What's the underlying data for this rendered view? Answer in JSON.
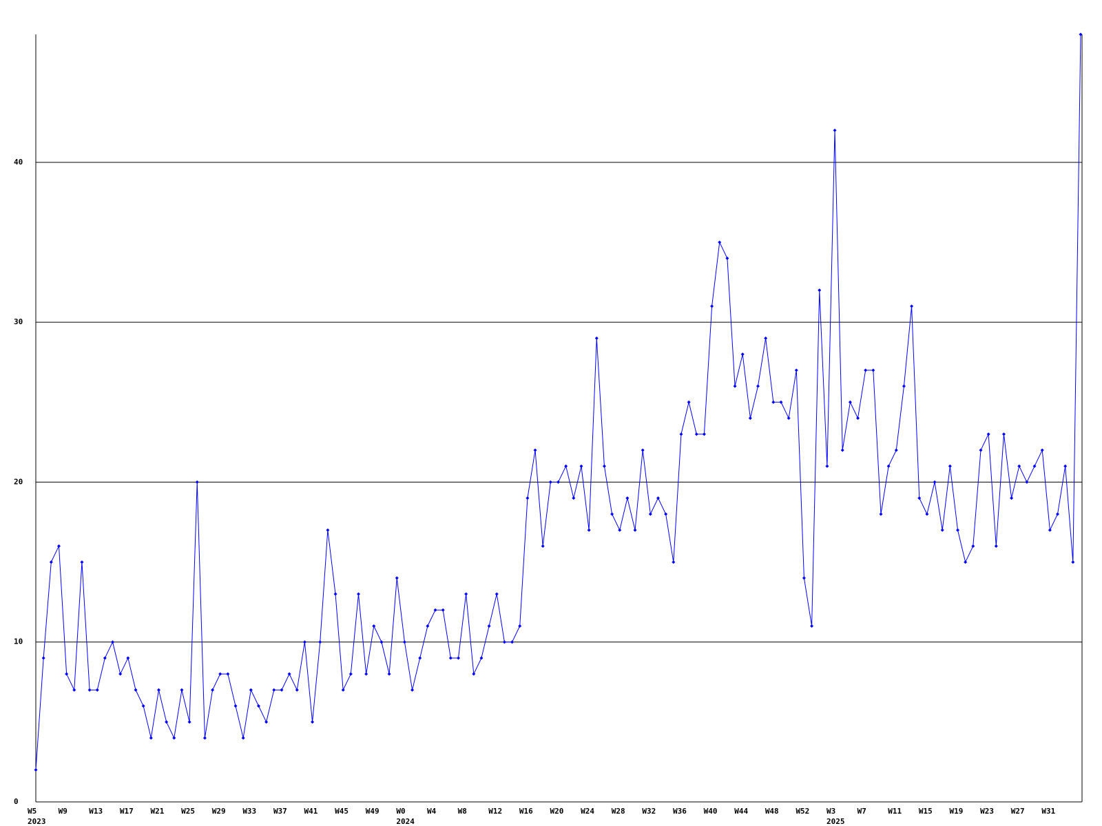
{
  "chart_data": {
    "type": "line",
    "categories": [
      "W5",
      null,
      null,
      null,
      "W9",
      null,
      null,
      null,
      "W13",
      null,
      null,
      null,
      "W17",
      null,
      null,
      null,
      "W21",
      null,
      null,
      null,
      "W25",
      null,
      null,
      null,
      "W29",
      null,
      null,
      null,
      "W33",
      null,
      null,
      null,
      "W37",
      null,
      null,
      null,
      "W41",
      null,
      null,
      null,
      "W45",
      null,
      null,
      null,
      "W49",
      null,
      null,
      null,
      "W0",
      null,
      null,
      null,
      "W4",
      null,
      null,
      null,
      "W8",
      null,
      null,
      null,
      "W12",
      null,
      null,
      null,
      "W16",
      null,
      null,
      null,
      "W20",
      null,
      null,
      null,
      "W24",
      null,
      null,
      null,
      "W28",
      null,
      null,
      null,
      "W32",
      null,
      null,
      null,
      "W36",
      null,
      null,
      null,
      "W40",
      null,
      null,
      null,
      "W44",
      null,
      null,
      null,
      "W48",
      null,
      null,
      null,
      "W52",
      null,
      null,
      null,
      "W3",
      null,
      null,
      null,
      "W7",
      null,
      null,
      null,
      "W11",
      null,
      null,
      null,
      "W15",
      null,
      null,
      null,
      "W19",
      null,
      null,
      null,
      "W23",
      null,
      null,
      null,
      "W27",
      null,
      null,
      null,
      "W31",
      null,
      null,
      null,
      null
    ],
    "years": [
      "2023",
      null,
      null,
      null,
      null,
      null,
      null,
      null,
      null,
      null,
      null,
      null,
      null,
      null,
      null,
      null,
      null,
      null,
      null,
      null,
      null,
      null,
      null,
      null,
      null,
      null,
      null,
      null,
      null,
      null,
      null,
      null,
      null,
      null,
      null,
      null,
      null,
      null,
      null,
      null,
      null,
      null,
      null,
      null,
      null,
      null,
      null,
      null,
      "2024",
      null,
      null,
      null,
      null,
      null,
      null,
      null,
      null,
      null,
      null,
      null,
      null,
      null,
      null,
      null,
      null,
      null,
      null,
      null,
      null,
      null,
      null,
      null,
      null,
      null,
      null,
      null,
      null,
      null,
      null,
      null,
      null,
      null,
      null,
      null,
      null,
      null,
      null,
      null,
      null,
      null,
      null,
      null,
      null,
      null,
      null,
      null,
      null,
      null,
      null,
      null,
      null,
      null,
      null,
      null,
      "2025",
      null,
      null,
      null,
      null,
      null,
      null,
      null,
      null,
      null,
      null,
      null,
      null,
      null,
      null,
      null,
      null,
      null,
      null,
      null,
      null,
      null,
      null,
      null,
      null,
      null,
      null,
      null,
      null,
      null,
      null,
      null,
      null
    ],
    "series": [
      {
        "color": "#0000ff",
        "values": [
          2,
          9,
          15,
          16,
          8,
          7,
          15,
          7,
          7,
          9,
          10,
          8,
          9,
          7,
          6,
          4,
          7,
          5,
          4,
          7,
          5,
          20,
          4,
          7,
          8,
          8,
          6,
          4,
          7,
          6,
          5,
          7,
          7,
          8,
          7,
          10,
          5,
          10,
          17,
          13,
          7,
          8,
          13,
          8,
          11,
          10,
          8,
          14,
          10,
          7,
          9,
          11,
          12,
          12,
          9,
          9,
          13,
          8,
          9,
          11,
          13,
          10,
          10,
          11,
          19,
          22,
          16,
          20,
          20,
          21,
          19,
          21,
          17,
          29,
          21,
          18,
          17,
          19,
          17,
          22,
          18,
          19,
          18,
          15,
          23,
          25,
          23,
          23,
          31,
          35,
          34,
          26,
          28,
          24,
          26,
          29,
          25,
          25,
          24,
          27,
          14,
          11,
          32,
          21,
          42,
          22,
          25,
          24,
          27,
          27,
          18,
          21,
          22,
          26,
          31,
          19,
          18,
          20,
          17,
          21,
          17,
          15,
          16,
          22,
          23,
          16,
          23,
          19,
          21,
          20,
          21,
          22,
          17,
          18,
          21,
          15,
          48
        ]
      }
    ],
    "ylim": [
      0,
      48
    ],
    "yticks": [
      0,
      10,
      20,
      30,
      40
    ],
    "grid": true
  }
}
